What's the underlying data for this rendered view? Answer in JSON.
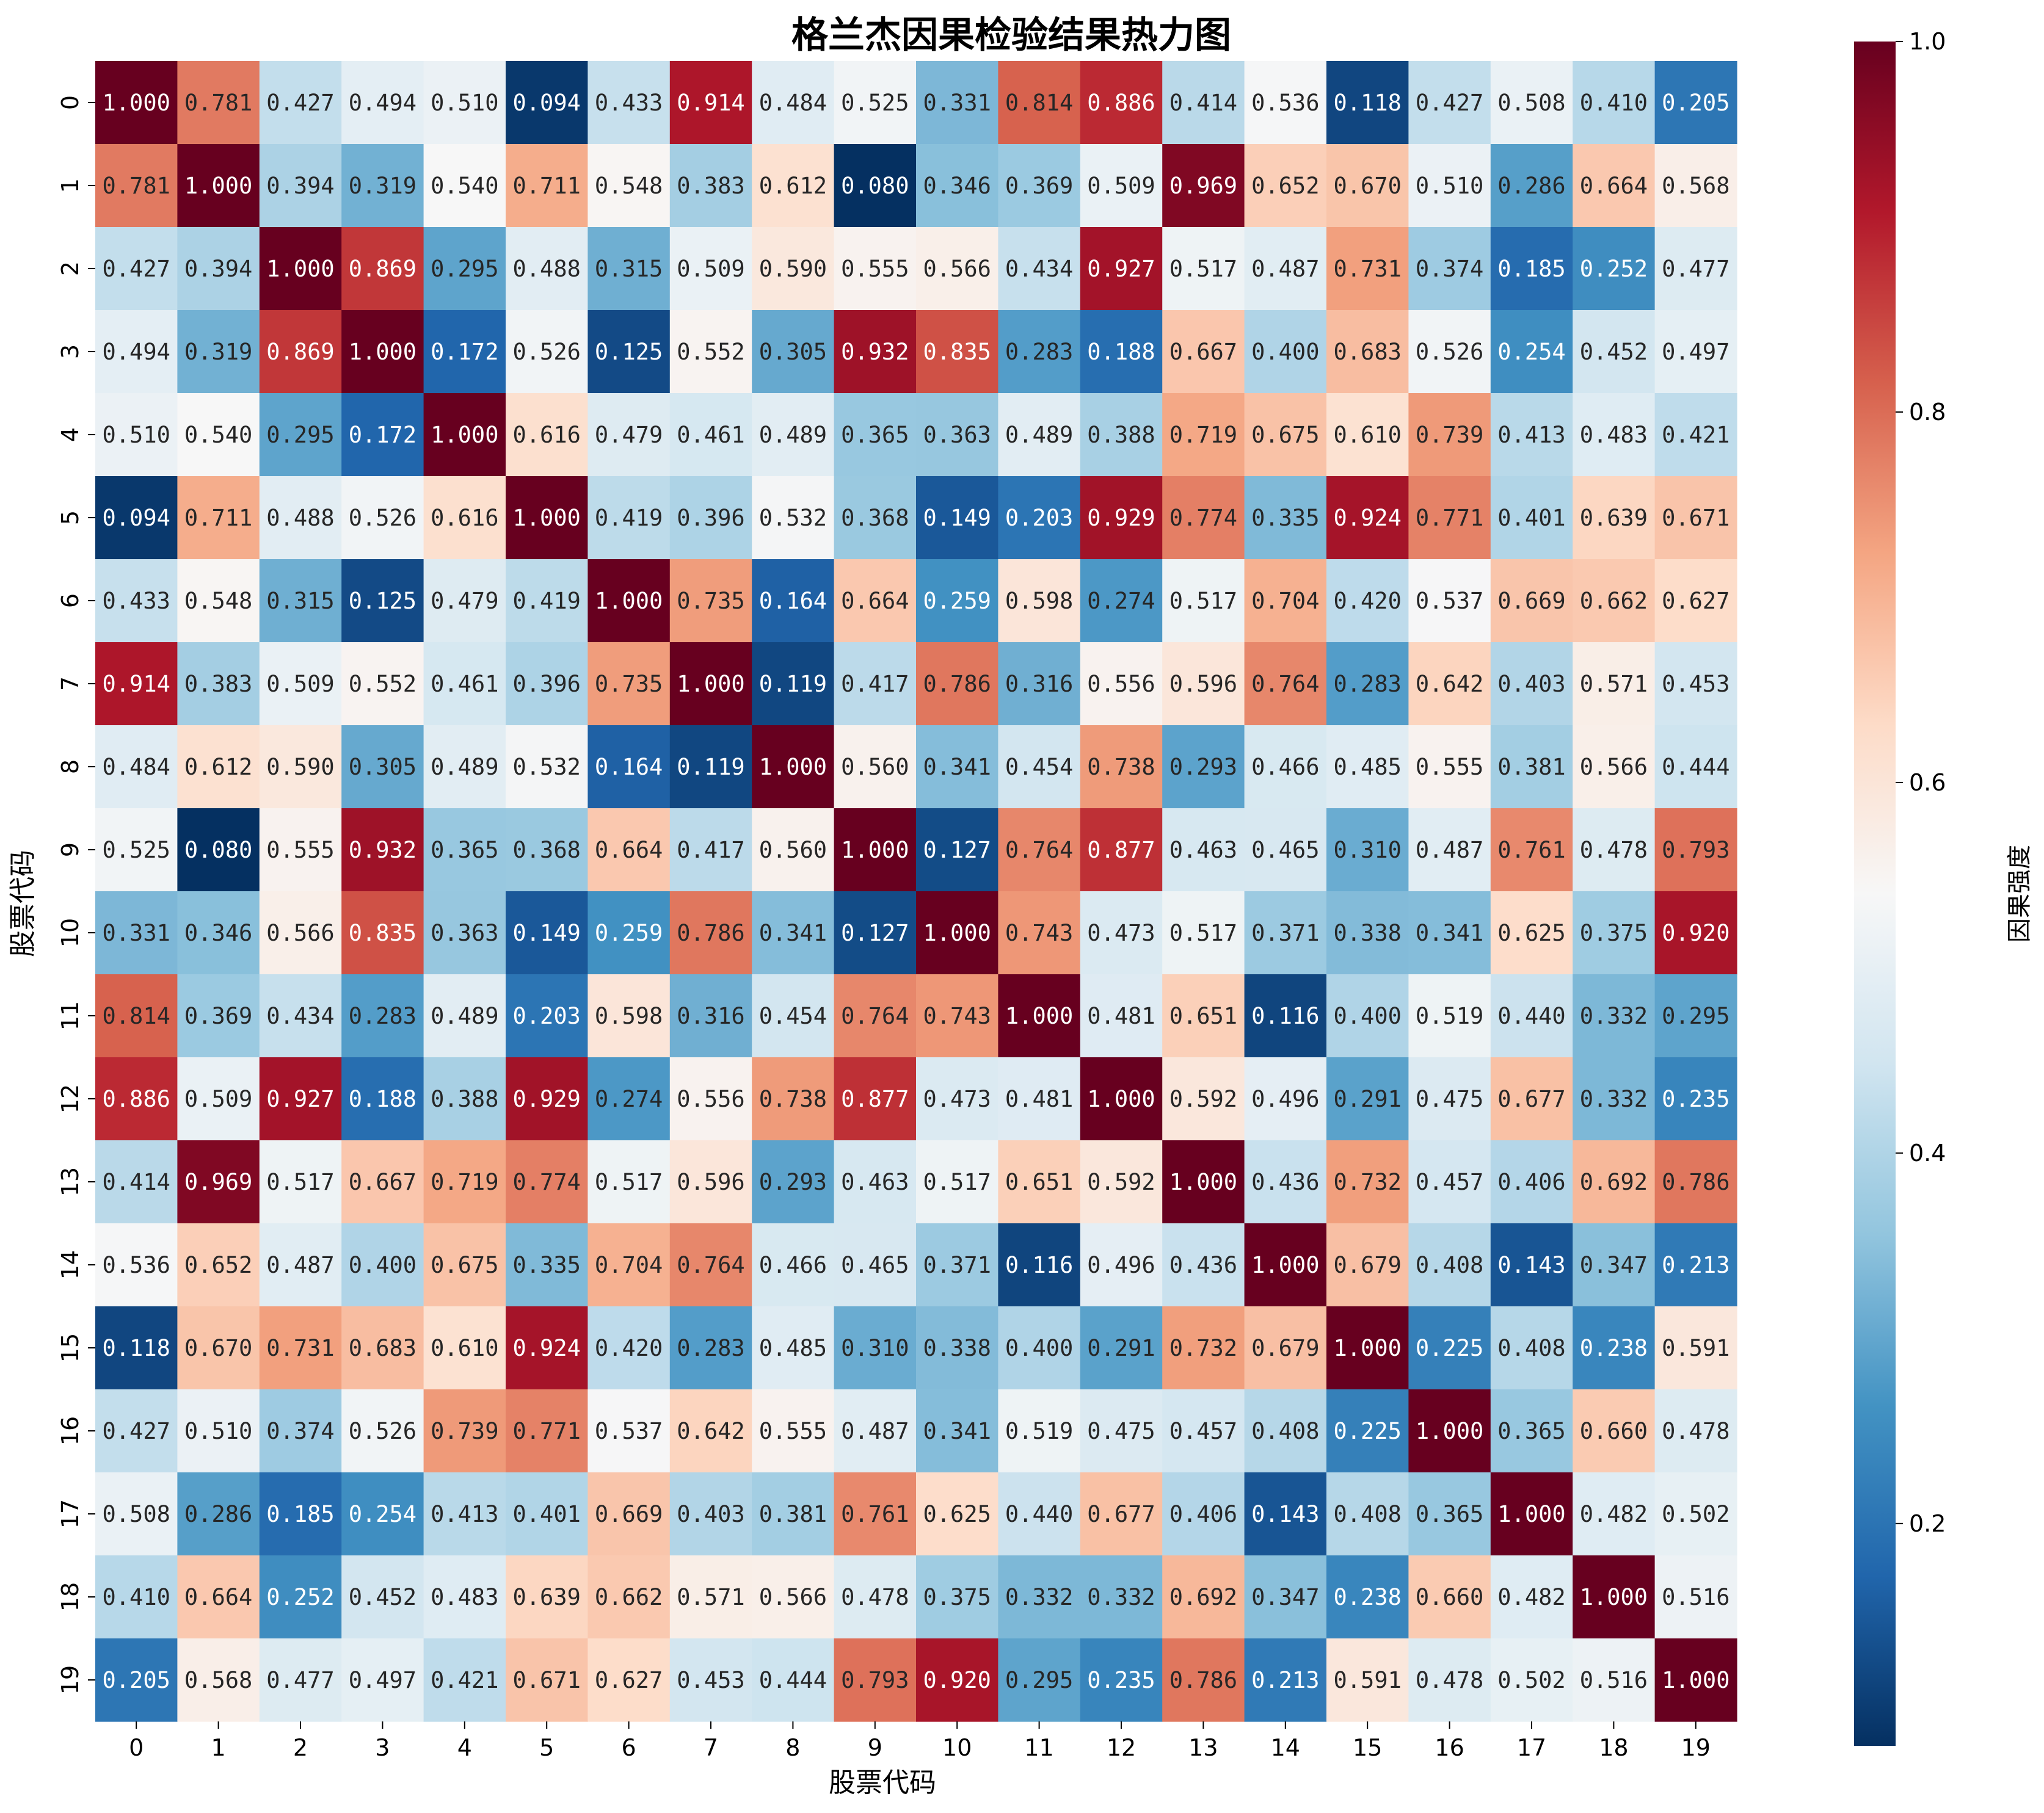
{
  "chart_data": {
    "type": "heatmap",
    "title": "格兰杰因果检验结果热力图",
    "xlabel": "股票代码",
    "ylabel": "股票代码",
    "x_categories": [
      "0",
      "1",
      "2",
      "3",
      "4",
      "5",
      "6",
      "7",
      "8",
      "9",
      "10",
      "11",
      "12",
      "13",
      "14",
      "15",
      "16",
      "17",
      "18",
      "19"
    ],
    "y_categories": [
      "0",
      "1",
      "2",
      "3",
      "4",
      "5",
      "6",
      "7",
      "8",
      "9",
      "10",
      "11",
      "12",
      "13",
      "14",
      "15",
      "16",
      "17",
      "18",
      "19"
    ],
    "values": [
      [
        1.0,
        0.781,
        0.427,
        0.494,
        0.51,
        0.094,
        0.433,
        0.914,
        0.484,
        0.525,
        0.331,
        0.814,
        0.886,
        0.414,
        0.536,
        0.118,
        0.427,
        0.508,
        0.41,
        0.205
      ],
      [
        0.781,
        1.0,
        0.394,
        0.319,
        0.54,
        0.711,
        0.548,
        0.383,
        0.612,
        0.08,
        0.346,
        0.369,
        0.509,
        0.969,
        0.652,
        0.67,
        0.51,
        0.286,
        0.664,
        0.568
      ],
      [
        0.427,
        0.394,
        1.0,
        0.869,
        0.295,
        0.488,
        0.315,
        0.509,
        0.59,
        0.555,
        0.566,
        0.434,
        0.927,
        0.517,
        0.487,
        0.731,
        0.374,
        0.185,
        0.252,
        0.477
      ],
      [
        0.494,
        0.319,
        0.869,
        1.0,
        0.172,
        0.526,
        0.125,
        0.552,
        0.305,
        0.932,
        0.835,
        0.283,
        0.188,
        0.667,
        0.4,
        0.683,
        0.526,
        0.254,
        0.452,
        0.497
      ],
      [
        0.51,
        0.54,
        0.295,
        0.172,
        1.0,
        0.616,
        0.479,
        0.461,
        0.489,
        0.365,
        0.363,
        0.489,
        0.388,
        0.719,
        0.675,
        0.61,
        0.739,
        0.413,
        0.483,
        0.421
      ],
      [
        0.094,
        0.711,
        0.488,
        0.526,
        0.616,
        1.0,
        0.419,
        0.396,
        0.532,
        0.368,
        0.149,
        0.203,
        0.929,
        0.774,
        0.335,
        0.924,
        0.771,
        0.401,
        0.639,
        0.671
      ],
      [
        0.433,
        0.548,
        0.315,
        0.125,
        0.479,
        0.419,
        1.0,
        0.735,
        0.164,
        0.664,
        0.259,
        0.598,
        0.274,
        0.517,
        0.704,
        0.42,
        0.537,
        0.669,
        0.662,
        0.627
      ],
      [
        0.914,
        0.383,
        0.509,
        0.552,
        0.461,
        0.396,
        0.735,
        1.0,
        0.119,
        0.417,
        0.786,
        0.316,
        0.556,
        0.596,
        0.764,
        0.283,
        0.642,
        0.403,
        0.571,
        0.453
      ],
      [
        0.484,
        0.612,
        0.59,
        0.305,
        0.489,
        0.532,
        0.164,
        0.119,
        1.0,
        0.56,
        0.341,
        0.454,
        0.738,
        0.293,
        0.466,
        0.485,
        0.555,
        0.381,
        0.566,
        0.444
      ],
      [
        0.525,
        0.08,
        0.555,
        0.932,
        0.365,
        0.368,
        0.664,
        0.417,
        0.56,
        1.0,
        0.127,
        0.764,
        0.877,
        0.463,
        0.465,
        0.31,
        0.487,
        0.761,
        0.478,
        0.793
      ],
      [
        0.331,
        0.346,
        0.566,
        0.835,
        0.363,
        0.149,
        0.259,
        0.786,
        0.341,
        0.127,
        1.0,
        0.743,
        0.473,
        0.517,
        0.371,
        0.338,
        0.341,
        0.625,
        0.375,
        0.92
      ],
      [
        0.814,
        0.369,
        0.434,
        0.283,
        0.489,
        0.203,
        0.598,
        0.316,
        0.454,
        0.764,
        0.743,
        1.0,
        0.481,
        0.651,
        0.116,
        0.4,
        0.519,
        0.44,
        0.332,
        0.295
      ],
      [
        0.886,
        0.509,
        0.927,
        0.188,
        0.388,
        0.929,
        0.274,
        0.556,
        0.738,
        0.877,
        0.473,
        0.481,
        1.0,
        0.592,
        0.496,
        0.291,
        0.475,
        0.677,
        0.332,
        0.235
      ],
      [
        0.414,
        0.969,
        0.517,
        0.667,
        0.719,
        0.774,
        0.517,
        0.596,
        0.293,
        0.463,
        0.517,
        0.651,
        0.592,
        1.0,
        0.436,
        0.732,
        0.457,
        0.406,
        0.692,
        0.786
      ],
      [
        0.536,
        0.652,
        0.487,
        0.4,
        0.675,
        0.335,
        0.704,
        0.764,
        0.466,
        0.465,
        0.371,
        0.116,
        0.496,
        0.436,
        1.0,
        0.679,
        0.408,
        0.143,
        0.347,
        0.213
      ],
      [
        0.118,
        0.67,
        0.731,
        0.683,
        0.61,
        0.924,
        0.42,
        0.283,
        0.485,
        0.31,
        0.338,
        0.4,
        0.291,
        0.732,
        0.679,
        1.0,
        0.225,
        0.408,
        0.238,
        0.591
      ],
      [
        0.427,
        0.51,
        0.374,
        0.526,
        0.739,
        0.771,
        0.537,
        0.642,
        0.555,
        0.487,
        0.341,
        0.519,
        0.475,
        0.457,
        0.408,
        0.225,
        1.0,
        0.365,
        0.66,
        0.478
      ],
      [
        0.508,
        0.286,
        0.185,
        0.254,
        0.413,
        0.401,
        0.669,
        0.403,
        0.381,
        0.761,
        0.625,
        0.44,
        0.677,
        0.406,
        0.143,
        0.408,
        0.365,
        1.0,
        0.482,
        0.502
      ],
      [
        0.41,
        0.664,
        0.252,
        0.452,
        0.483,
        0.639,
        0.662,
        0.571,
        0.566,
        0.478,
        0.375,
        0.332,
        0.332,
        0.692,
        0.347,
        0.238,
        0.66,
        0.482,
        1.0,
        0.516
      ],
      [
        0.205,
        0.568,
        0.477,
        0.497,
        0.421,
        0.671,
        0.627,
        0.453,
        0.444,
        0.793,
        0.92,
        0.295,
        0.235,
        0.786,
        0.213,
        0.591,
        0.478,
        0.502,
        0.516,
        1.0
      ]
    ],
    "value_format": "3 decimals",
    "colormap": "RdBu_r",
    "vmin": 0.08,
    "vmax": 1.0,
    "colorbar": {
      "label": "因果强度",
      "ticks": [
        0.2,
        0.4,
        0.6,
        0.8,
        1.0
      ],
      "tick_labels": [
        "0.2",
        "0.4",
        "0.6",
        "0.8",
        "1.0"
      ]
    }
  }
}
